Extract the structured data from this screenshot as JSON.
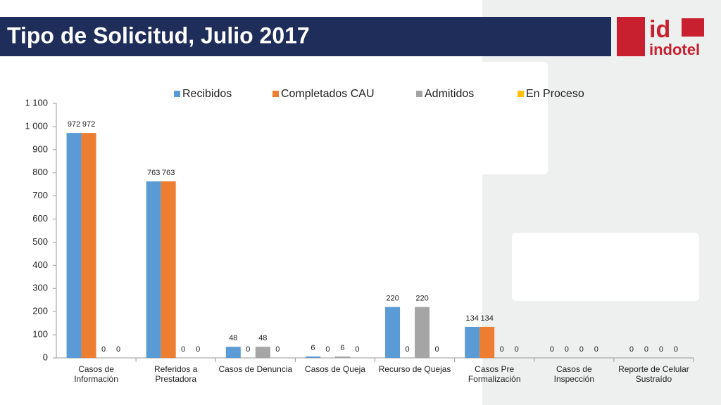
{
  "logo_mark": "id",
  "logo_name": "indotel",
  "chart_data": {
    "type": "bar",
    "title": "Tipo de Solicitud, Julio 2017",
    "categories": [
      "Casos de Información",
      "Referidos a Prestadora",
      "Casos de Denuncia",
      "Casos de Queja",
      "Recurso de Quejas",
      "Casos Pre Formalización",
      "Casos de Inspección",
      "Reporte de Celular Sustraído"
    ],
    "series": [
      {
        "name": "Recibidos",
        "color": "#5b9bd5",
        "values": [
          972,
          763,
          48,
          6,
          220,
          134,
          0,
          0
        ]
      },
      {
        "name": "Completados CAU",
        "color": "#ed7d31",
        "values": [
          972,
          763,
          0,
          0,
          0,
          134,
          0,
          0
        ]
      },
      {
        "name": "Admitidos",
        "color": "#a5a5a5",
        "values": [
          0,
          0,
          48,
          6,
          220,
          0,
          0,
          0
        ]
      },
      {
        "name": "En Proceso",
        "color": "#ffc000",
        "values": [
          0,
          0,
          0,
          0,
          0,
          0,
          0,
          0
        ]
      }
    ],
    "ylim": [
      0,
      1100
    ],
    "yticks": [
      0,
      100,
      200,
      300,
      400,
      500,
      600,
      700,
      800,
      900,
      {
        "value": 1000,
        "label": "1 000"
      },
      {
        "value": 1100,
        "label": "1 100"
      }
    ],
    "grid": false,
    "legend": "top"
  }
}
